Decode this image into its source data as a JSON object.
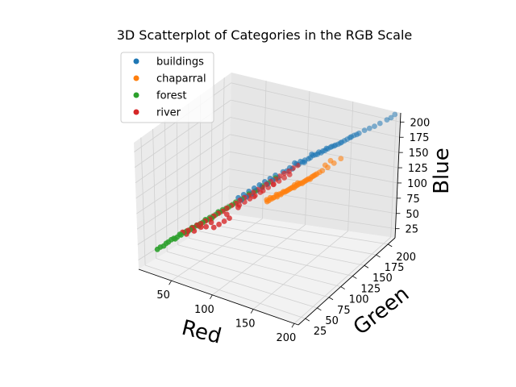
{
  "chart_data": {
    "type": "scatter",
    "projection": "3d",
    "title": "3D Scatterplot of Categories in the RGB Scale",
    "xlabel": "Red",
    "ylabel": "Green",
    "zlabel": "Blue",
    "xlim": [
      10,
      205
    ],
    "ylim": [
      10,
      215
    ],
    "zlim": [
      10,
      215
    ],
    "xticks": [
      50,
      100,
      150,
      200
    ],
    "yticks": [
      25,
      50,
      75,
      100,
      125,
      150,
      175,
      200
    ],
    "zticks": [
      25,
      50,
      75,
      100,
      125,
      150,
      175,
      200
    ],
    "grid": true,
    "legend_position": "upper-left",
    "series": [
      {
        "name": "buildings",
        "color": "#1f77b4",
        "points": [
          [
            120,
            140,
            140
          ],
          [
            125,
            145,
            145
          ],
          [
            128,
            148,
            148
          ],
          [
            132,
            150,
            150
          ],
          [
            135,
            152,
            152
          ],
          [
            138,
            156,
            156
          ],
          [
            142,
            158,
            158
          ],
          [
            145,
            160,
            160
          ],
          [
            148,
            163,
            163
          ],
          [
            150,
            165,
            165
          ],
          [
            153,
            168,
            168
          ],
          [
            156,
            170,
            170
          ],
          [
            160,
            173,
            173
          ],
          [
            163,
            176,
            176
          ],
          [
            167,
            180,
            180
          ],
          [
            170,
            183,
            183
          ],
          [
            174,
            186,
            186
          ],
          [
            178,
            190,
            190
          ],
          [
            182,
            193,
            193
          ],
          [
            186,
            196,
            196
          ],
          [
            190,
            200,
            200
          ],
          [
            195,
            205,
            205
          ],
          [
            198,
            208,
            208
          ],
          [
            200,
            212,
            212
          ],
          [
            115,
            135,
            135
          ],
          [
            118,
            138,
            136
          ],
          [
            122,
            142,
            138
          ],
          [
            127,
            146,
            144
          ],
          [
            130,
            149,
            147
          ],
          [
            136,
            154,
            153
          ],
          [
            140,
            157,
            157
          ],
          [
            146,
            162,
            162
          ],
          [
            152,
            167,
            167
          ],
          [
            158,
            172,
            171
          ],
          [
            165,
            178,
            178
          ],
          [
            172,
            185,
            184
          ],
          [
            112,
            130,
            128
          ],
          [
            108,
            126,
            125
          ],
          [
            104,
            122,
            120
          ],
          [
            100,
            118,
            116
          ],
          [
            96,
            114,
            112
          ],
          [
            92,
            110,
            108
          ],
          [
            88,
            106,
            104
          ],
          [
            84,
            102,
            100
          ],
          [
            110,
            128,
            132
          ],
          [
            106,
            124,
            128
          ],
          [
            102,
            120,
            124
          ],
          [
            98,
            116,
            120
          ],
          [
            94,
            112,
            116
          ],
          [
            90,
            108,
            112
          ],
          [
            86,
            104,
            108
          ],
          [
            82,
            100,
            104
          ],
          [
            124,
            143,
            147
          ],
          [
            131,
            151,
            146
          ],
          [
            137,
            155,
            158
          ],
          [
            143,
            159,
            161
          ],
          [
            149,
            164,
            166
          ],
          [
            155,
            169,
            169
          ],
          [
            161,
            174,
            174
          ],
          [
            168,
            181,
            181
          ]
        ]
      },
      {
        "name": "chaparral",
        "color": "#ff7f0e",
        "points": [
          [
            110,
            125,
            100
          ],
          [
            112,
            128,
            102
          ],
          [
            114,
            130,
            104
          ],
          [
            116,
            132,
            105
          ],
          [
            118,
            134,
            106
          ],
          [
            120,
            136,
            108
          ],
          [
            122,
            138,
            110
          ],
          [
            124,
            140,
            112
          ],
          [
            126,
            142,
            113
          ],
          [
            128,
            144,
            115
          ],
          [
            130,
            146,
            117
          ],
          [
            132,
            148,
            118
          ],
          [
            134,
            150,
            120
          ],
          [
            136,
            152,
            122
          ],
          [
            138,
            154,
            124
          ],
          [
            140,
            156,
            126
          ],
          [
            142,
            158,
            128
          ],
          [
            144,
            160,
            130
          ],
          [
            113,
            127,
            101
          ],
          [
            115,
            131,
            103
          ],
          [
            117,
            133,
            107
          ],
          [
            119,
            135,
            107
          ],
          [
            121,
            137,
            109
          ],
          [
            123,
            139,
            111
          ],
          [
            125,
            141,
            111
          ],
          [
            127,
            143,
            114
          ],
          [
            129,
            145,
            116
          ],
          [
            131,
            147,
            116
          ],
          [
            133,
            149,
            119
          ],
          [
            135,
            151,
            121
          ],
          [
            137,
            153,
            121
          ],
          [
            139,
            155,
            125
          ],
          [
            141,
            157,
            127
          ],
          [
            111,
            129,
            103
          ],
          [
            109,
            126,
            99
          ],
          [
            108,
            124,
            98
          ],
          [
            106,
            122,
            96
          ],
          [
            105,
            120,
            95
          ],
          [
            104,
            121,
            97
          ],
          [
            107,
            123,
            100
          ],
          [
            146,
            162,
            132
          ],
          [
            150,
            166,
            136
          ],
          [
            155,
            170,
            142
          ],
          [
            160,
            175,
            148
          ],
          [
            148,
            164,
            140
          ],
          [
            152,
            168,
            146
          ],
          [
            128,
            143,
            118
          ],
          [
            126,
            140,
            116
          ]
        ]
      },
      {
        "name": "forest",
        "color": "#2ca02c",
        "points": [
          [
            25,
            40,
            40
          ],
          [
            28,
            45,
            45
          ],
          [
            30,
            48,
            48
          ],
          [
            32,
            50,
            50
          ],
          [
            35,
            52,
            52
          ],
          [
            38,
            55,
            55
          ],
          [
            40,
            58,
            58
          ],
          [
            42,
            60,
            60
          ],
          [
            45,
            62,
            62
          ],
          [
            48,
            65,
            65
          ],
          [
            50,
            68,
            68
          ],
          [
            53,
            70,
            70
          ],
          [
            55,
            72,
            72
          ],
          [
            58,
            75,
            75
          ],
          [
            60,
            78,
            78
          ],
          [
            63,
            80,
            80
          ],
          [
            65,
            82,
            82
          ],
          [
            68,
            85,
            85
          ],
          [
            70,
            88,
            88
          ],
          [
            73,
            90,
            90
          ],
          [
            75,
            92,
            92
          ],
          [
            78,
            95,
            95
          ],
          [
            80,
            98,
            98
          ],
          [
            85,
            102,
            102
          ],
          [
            90,
            108,
            108
          ],
          [
            95,
            112,
            112
          ],
          [
            100,
            118,
            118
          ],
          [
            105,
            122,
            122
          ],
          [
            110,
            128,
            128
          ],
          [
            20,
            35,
            35
          ],
          [
            22,
            38,
            38
          ],
          [
            27,
            42,
            44
          ],
          [
            33,
            51,
            49
          ],
          [
            37,
            54,
            56
          ],
          [
            43,
            61,
            59
          ],
          [
            47,
            63,
            66
          ],
          [
            52,
            69,
            67
          ],
          [
            57,
            74,
            76
          ],
          [
            62,
            79,
            77
          ],
          [
            67,
            84,
            86
          ]
        ]
      },
      {
        "name": "river",
        "color": "#d62728",
        "points": [
          [
            40,
            55,
            60
          ],
          [
            45,
            58,
            63
          ],
          [
            48,
            62,
            66
          ],
          [
            52,
            65,
            70
          ],
          [
            55,
            68,
            72
          ],
          [
            58,
            72,
            75
          ],
          [
            62,
            75,
            78
          ],
          [
            65,
            78,
            82
          ],
          [
            68,
            82,
            85
          ],
          [
            72,
            85,
            88
          ],
          [
            75,
            88,
            92
          ],
          [
            78,
            92,
            95
          ],
          [
            82,
            95,
            98
          ],
          [
            85,
            98,
            102
          ],
          [
            88,
            102,
            105
          ],
          [
            92,
            105,
            108
          ],
          [
            95,
            108,
            112
          ],
          [
            98,
            112,
            115
          ],
          [
            102,
            115,
            118
          ],
          [
            105,
            118,
            122
          ],
          [
            108,
            122,
            125
          ],
          [
            112,
            125,
            128
          ],
          [
            115,
            128,
            132
          ],
          [
            118,
            132,
            135
          ],
          [
            122,
            135,
            138
          ],
          [
            125,
            138,
            142
          ],
          [
            128,
            142,
            145
          ],
          [
            100,
            120,
            110
          ],
          [
            104,
            124,
            114
          ],
          [
            108,
            128,
            118
          ],
          [
            112,
            132,
            122
          ],
          [
            116,
            136,
            126
          ],
          [
            120,
            140,
            130
          ],
          [
            90,
            110,
            100
          ],
          [
            94,
            114,
            104
          ],
          [
            98,
            118,
            108
          ],
          [
            86,
            106,
            96
          ],
          [
            82,
            102,
            92
          ],
          [
            70,
            80,
            70
          ],
          [
            74,
            84,
            74
          ],
          [
            78,
            88,
            78
          ],
          [
            66,
            76,
            66
          ],
          [
            60,
            70,
            68
          ],
          [
            50,
            62,
            62
          ],
          [
            44,
            56,
            58
          ],
          [
            56,
            66,
            68
          ],
          [
            64,
            74,
            74
          ],
          [
            76,
            86,
            84
          ],
          [
            84,
            96,
            92
          ],
          [
            96,
            108,
            106
          ],
          [
            110,
            124,
            120
          ]
        ]
      }
    ]
  }
}
